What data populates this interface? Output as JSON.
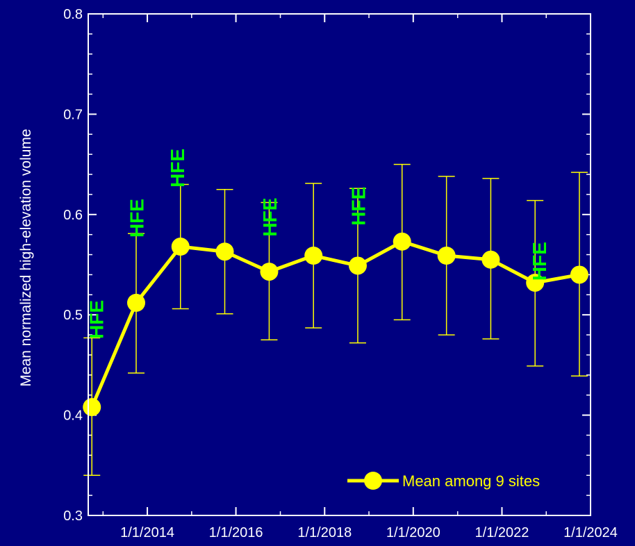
{
  "chart_data": {
    "type": "line",
    "title": "",
    "xlabel": "",
    "ylabel": "Mean normalized high-elevation volume",
    "xlim": [
      "2012-09-01",
      "2024-01-01"
    ],
    "ylim": [
      0.3,
      0.8
    ],
    "x_ticks": [
      "2014-01-01",
      "2016-01-01",
      "2018-01-01",
      "2020-01-01",
      "2022-01-01",
      "2024-01-01"
    ],
    "x_tick_labels": [
      "1/1/2014",
      "1/1/2016",
      "1/1/2018",
      "1/1/2020",
      "1/1/2022",
      "1/1/2024"
    ],
    "y_ticks": [
      0.3,
      0.4,
      0.5,
      0.6,
      0.7,
      0.8
    ],
    "y_tick_labels": [
      "0.3",
      "0.4",
      "0.5",
      "0.6",
      "0.7",
      "0.8"
    ],
    "grid": false,
    "legend": "bottom-right",
    "series": [
      {
        "name": "Mean among 9 sites",
        "color": "#FFFF00",
        "x": [
          "2012-10-01",
          "2013-10-01",
          "2014-10-01",
          "2015-10-01",
          "2016-10-01",
          "2017-10-01",
          "2018-10-01",
          "2019-10-01",
          "2020-10-01",
          "2021-10-01",
          "2022-10-01",
          "2023-10-01"
        ],
        "y": [
          0.408,
          0.512,
          0.568,
          0.563,
          0.543,
          0.559,
          0.549,
          0.573,
          0.559,
          0.555,
          0.532,
          0.54
        ],
        "error_low": [
          0.34,
          0.442,
          0.506,
          0.501,
          0.475,
          0.487,
          0.472,
          0.495,
          0.48,
          0.476,
          0.449,
          0.439
        ],
        "error_high": [
          0.477,
          0.581,
          0.63,
          0.625,
          0.612,
          0.631,
          0.626,
          0.65,
          0.638,
          0.636,
          0.614,
          0.642
        ]
      }
    ],
    "annotations": [
      {
        "text": "HFE",
        "x": "2013-01-01",
        "y": 0.476,
        "color": "#00FF00"
      },
      {
        "text": "HFE",
        "x": "2013-12-01",
        "y": 0.577,
        "color": "#00FF00"
      },
      {
        "text": "HFE",
        "x": "2014-11-01",
        "y": 0.627,
        "color": "#00FF00"
      },
      {
        "text": "HFE",
        "x": "2016-12-01",
        "y": 0.578,
        "color": "#00FF00"
      },
      {
        "text": "HFE",
        "x": "2018-12-01",
        "y": 0.589,
        "color": "#00FF00"
      },
      {
        "text": "HFE",
        "x": "2023-01-01",
        "y": 0.534,
        "color": "#00FF00"
      }
    ],
    "colors": {
      "background": "#000080",
      "axes": "#FFFFFF",
      "series": "#FFFF00",
      "annotation": "#00FF00"
    }
  }
}
